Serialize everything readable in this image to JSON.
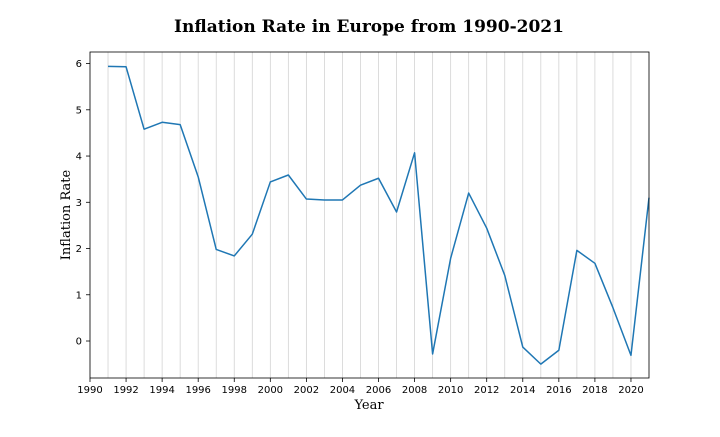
{
  "chart_data": {
    "type": "line",
    "title": "Inflation Rate in Europe from 1990-2021",
    "xlabel": "Year",
    "ylabel": "Inflation Rate",
    "xlim": [
      1990,
      2021
    ],
    "ylim": [
      -0.8,
      6.25
    ],
    "x_ticks": [
      1990,
      1992,
      1994,
      1996,
      1998,
      2000,
      2002,
      2004,
      2006,
      2008,
      2010,
      2012,
      2014,
      2016,
      2018,
      2020
    ],
    "y_ticks": [
      0,
      1,
      2,
      3,
      4,
      5,
      6
    ],
    "grid": "vertical lines at every year",
    "series": [
      {
        "color": "#1f77b4",
        "x": [
          1991,
          1992,
          1993,
          1994,
          1995,
          1996,
          1997,
          1998,
          1999,
          2000,
          2001,
          2002,
          2003,
          2004,
          2005,
          2006,
          2007,
          2008,
          2009,
          2010,
          2011,
          2012,
          2013,
          2014,
          2015,
          2016,
          2017,
          2018,
          2019,
          2020,
          2021
        ],
        "y": [
          5.94,
          5.93,
          4.58,
          4.73,
          4.68,
          3.55,
          1.98,
          1.84,
          2.31,
          3.44,
          3.59,
          3.07,
          3.05,
          3.05,
          3.37,
          3.52,
          2.79,
          4.07,
          -0.28,
          1.79,
          3.2,
          2.44,
          1.42,
          -0.13,
          -0.5,
          -0.2,
          1.96,
          1.68,
          0.72,
          -0.31,
          3.1
        ]
      }
    ]
  }
}
